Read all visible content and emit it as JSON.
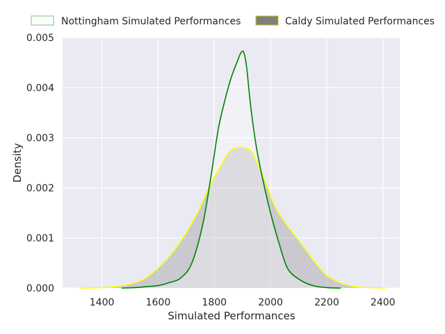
{
  "chart_data": {
    "type": "area",
    "title": "",
    "xlabel": "Simulated Performances",
    "ylabel": "Density",
    "xlim": [
      1260,
      2460
    ],
    "ylim": [
      0,
      0.005
    ],
    "x_ticks": [
      1400,
      1600,
      1800,
      2000,
      2200,
      2400
    ],
    "x_tick_labels": [
      "1400",
      "1600",
      "1800",
      "2000",
      "2200",
      "2400"
    ],
    "y_ticks": [
      0,
      0.001,
      0.002,
      0.003,
      0.004,
      0.005
    ],
    "y_tick_labels": [
      "0.000",
      "0.001",
      "0.002",
      "0.003",
      "0.004",
      "0.005"
    ],
    "grid": true,
    "legend_position": "top, above plot",
    "series": [
      {
        "name": "Caldy Simulated Performances",
        "line_color": "#ffff00",
        "fill_color": "#7f7f7f",
        "fill_opacity": 0.3,
        "points": [
          [
            1320,
            0.0
          ],
          [
            1400,
            1e-05
          ],
          [
            1450,
            3e-05
          ],
          [
            1500,
            8e-05
          ],
          [
            1550,
            0.00018
          ],
          [
            1600,
            0.0004
          ],
          [
            1650,
            0.0007
          ],
          [
            1700,
            0.0011
          ],
          [
            1740,
            0.0015
          ],
          [
            1780,
            0.002
          ],
          [
            1820,
            0.0024
          ],
          [
            1850,
            0.0027
          ],
          [
            1880,
            0.0028
          ],
          [
            1910,
            0.0028
          ],
          [
            1935,
            0.0027
          ],
          [
            1960,
            0.0024
          ],
          [
            1990,
            0.002
          ],
          [
            2010,
            0.0017
          ],
          [
            2040,
            0.0014
          ],
          [
            2080,
            0.0011
          ],
          [
            2120,
            0.0008
          ],
          [
            2160,
            0.0005
          ],
          [
            2200,
            0.00025
          ],
          [
            2250,
            0.0001
          ],
          [
            2300,
            3e-05
          ],
          [
            2350,
            1e-05
          ],
          [
            2410,
            0.0
          ]
        ]
      },
      {
        "name": "Nottingham Simulated Performances",
        "line_color": "#008000",
        "fill_color": "#ffffff",
        "fill_opacity": 0.35,
        "points": [
          [
            1470,
            0.0
          ],
          [
            1520,
            1e-05
          ],
          [
            1560,
            3e-05
          ],
          [
            1600,
            5e-05
          ],
          [
            1640,
            0.00011
          ],
          [
            1680,
            0.0002
          ],
          [
            1720,
            0.0005
          ],
          [
            1760,
            0.0013
          ],
          [
            1790,
            0.0023
          ],
          [
            1815,
            0.0032
          ],
          [
            1840,
            0.0038
          ],
          [
            1860,
            0.0042
          ],
          [
            1880,
            0.0045
          ],
          [
            1895,
            0.0047
          ],
          [
            1905,
            0.0047
          ],
          [
            1915,
            0.0044
          ],
          [
            1930,
            0.0036
          ],
          [
            1950,
            0.0028
          ],
          [
            1975,
            0.0021
          ],
          [
            2000,
            0.0015
          ],
          [
            2030,
            0.0009
          ],
          [
            2060,
            0.0004
          ],
          [
            2100,
            0.00018
          ],
          [
            2150,
            5e-05
          ],
          [
            2200,
            1e-05
          ],
          [
            2250,
            0.0
          ]
        ]
      }
    ]
  },
  "legend": {
    "items": [
      {
        "label": "Nottingham Simulated Performances",
        "swatch_fill": "#ffffff",
        "swatch_stroke": "#80c080"
      },
      {
        "label": "Caldy Simulated Performances",
        "swatch_fill": "#7f7f7f",
        "swatch_stroke": "#cccc00"
      }
    ]
  }
}
